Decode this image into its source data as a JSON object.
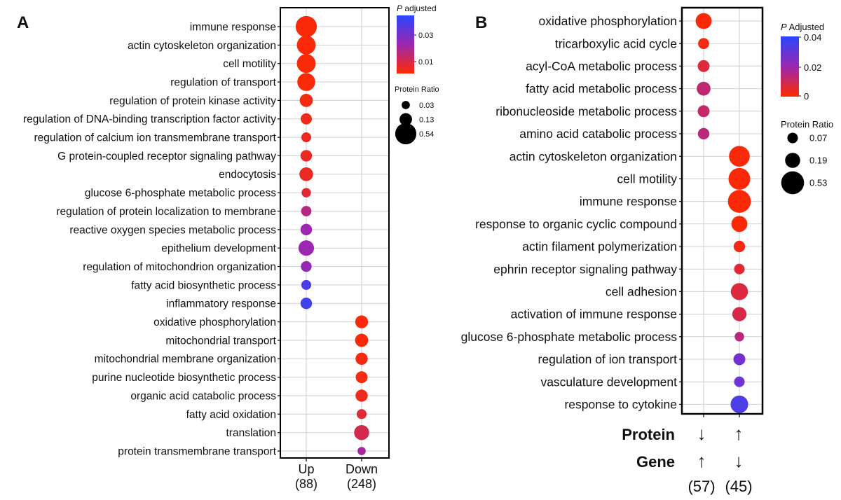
{
  "panels": [
    {
      "letter": "A"
    },
    {
      "letter": "B"
    }
  ],
  "legends": {
    "A": {
      "color_title_italic": "P",
      "color_title_rest": " adjusted",
      "color_ticks": [
        "0.03",
        "0.01"
      ],
      "size_title": "Protein Ratio",
      "size_labels": [
        "0.03",
        "0.13",
        "0.54"
      ],
      "size_values": [
        0.03,
        0.13,
        0.54
      ]
    },
    "B": {
      "color_title_italic": "P",
      "color_title_rest": " Adjusted",
      "color_ticks": [
        "0.04",
        "0.02",
        "0"
      ],
      "size_title": "Protein Ratio",
      "size_labels": [
        "0.07",
        "0.19",
        "0.53"
      ],
      "size_values": [
        0.07,
        0.19,
        0.53
      ]
    }
  },
  "colors": {
    "low_p": "#ff2a00",
    "mid_p": "#9c27b0",
    "high_p": "#2946ff",
    "grid": "#cfcfcf",
    "frame": "#000000",
    "text": "#111111"
  },
  "row_labels": {
    "Protein": "Protein",
    "Gene": "Gene"
  },
  "chart_data": [
    {
      "type": "scatter",
      "panel": "A",
      "x_categories": [
        "Up\n(88)",
        "Down\n(248)"
      ],
      "y_categories": [
        "immune response",
        "actin cytoskeleton organization",
        "cell motility",
        "regulation of transport",
        "regulation of protein kinase activity",
        "regulation of DNA-binding transcription factor activity",
        "regulation of calcium ion transmembrane transport",
        "G protein-coupled receptor signaling pathway",
        "endocytosis",
        "glucose 6-phosphate metabolic process",
        "regulation of protein localization to membrane",
        "reactive oxygen species metabolic process",
        "epithelium development",
        "regulation of mitochondrion organization",
        "fatty acid biosynthetic process",
        "inflammatory response",
        "oxidative phosphorylation",
        "mitochondrial transport",
        "mitochondrial membrane organization",
        "purine nucleotide biosynthetic process",
        "organic acid catabolic process",
        "fatty acid oxidation",
        "translation",
        "protein transmembrane transport"
      ],
      "color_range": [
        0.0,
        0.04
      ],
      "points": [
        {
          "x": 0,
          "y": 0,
          "ratio": 0.54,
          "p": 0.001
        },
        {
          "x": 0,
          "y": 1,
          "ratio": 0.4,
          "p": 0.001
        },
        {
          "x": 0,
          "y": 2,
          "ratio": 0.4,
          "p": 0.001
        },
        {
          "x": 0,
          "y": 3,
          "ratio": 0.35,
          "p": 0.001
        },
        {
          "x": 0,
          "y": 4,
          "ratio": 0.15,
          "p": 0.002
        },
        {
          "x": 0,
          "y": 5,
          "ratio": 0.09,
          "p": 0.003
        },
        {
          "x": 0,
          "y": 6,
          "ratio": 0.06,
          "p": 0.004
        },
        {
          "x": 0,
          "y": 7,
          "ratio": 0.1,
          "p": 0.004
        },
        {
          "x": 0,
          "y": 8,
          "ratio": 0.17,
          "p": 0.004
        },
        {
          "x": 0,
          "y": 9,
          "ratio": 0.05,
          "p": 0.006
        },
        {
          "x": 0,
          "y": 10,
          "ratio": 0.07,
          "p": 0.015
        },
        {
          "x": 0,
          "y": 11,
          "ratio": 0.1,
          "p": 0.02
        },
        {
          "x": 0,
          "y": 12,
          "ratio": 0.24,
          "p": 0.02
        },
        {
          "x": 0,
          "y": 13,
          "ratio": 0.08,
          "p": 0.021
        },
        {
          "x": 0,
          "y": 14,
          "ratio": 0.06,
          "p": 0.034
        },
        {
          "x": 0,
          "y": 15,
          "ratio": 0.1,
          "p": 0.036
        },
        {
          "x": 1,
          "y": 16,
          "ratio": 0.14,
          "p": 0.001
        },
        {
          "x": 1,
          "y": 17,
          "ratio": 0.15,
          "p": 0.001
        },
        {
          "x": 1,
          "y": 18,
          "ratio": 0.12,
          "p": 0.002
        },
        {
          "x": 1,
          "y": 19,
          "ratio": 0.11,
          "p": 0.002
        },
        {
          "x": 1,
          "y": 20,
          "ratio": 0.12,
          "p": 0.003
        },
        {
          "x": 1,
          "y": 21,
          "ratio": 0.06,
          "p": 0.006
        },
        {
          "x": 1,
          "y": 22,
          "ratio": 0.22,
          "p": 0.009
        },
        {
          "x": 1,
          "y": 23,
          "ratio": 0.03,
          "p": 0.018
        }
      ]
    },
    {
      "type": "scatter",
      "panel": "B",
      "x_categories": [
        "↓ ↑ (57)",
        "↑ ↓ (45)"
      ],
      "x_labels": {
        "protein": [
          "↓",
          "↑"
        ],
        "gene": [
          "↑",
          "↓"
        ],
        "counts": [
          "(57)",
          "(45)"
        ]
      },
      "y_categories": [
        "oxidative phosphorylation",
        "tricarboxylic acid cycle",
        "acyl-CoA metabolic process",
        "fatty acid metabolic process",
        "ribonucleoside metabolic process",
        "amino acid catabolic process",
        "actin cytoskeleton organization",
        "cell motility",
        "immune response",
        "response to organic cyclic compound",
        "actin filament polymerization",
        "ephrin receptor signaling pathway",
        "cell adhesion",
        "activation of immune response",
        "glucose 6-phosphate metabolic process",
        "regulation of ion transport",
        "vasculature development",
        "response to cytokine"
      ],
      "color_range": [
        0.0,
        0.04
      ],
      "points": [
        {
          "x": 0,
          "y": 0,
          "ratio": 0.22,
          "p": 0.001
        },
        {
          "x": 0,
          "y": 1,
          "ratio": 0.08,
          "p": 0.002
        },
        {
          "x": 0,
          "y": 2,
          "ratio": 0.1,
          "p": 0.007
        },
        {
          "x": 0,
          "y": 3,
          "ratio": 0.15,
          "p": 0.013
        },
        {
          "x": 0,
          "y": 4,
          "ratio": 0.1,
          "p": 0.012
        },
        {
          "x": 0,
          "y": 5,
          "ratio": 0.09,
          "p": 0.014
        },
        {
          "x": 1,
          "y": 6,
          "ratio": 0.42,
          "p": 0.001
        },
        {
          "x": 1,
          "y": 7,
          "ratio": 0.47,
          "p": 0.001
        },
        {
          "x": 1,
          "y": 8,
          "ratio": 0.53,
          "p": 0.001
        },
        {
          "x": 1,
          "y": 9,
          "ratio": 0.22,
          "p": 0.001
        },
        {
          "x": 1,
          "y": 10,
          "ratio": 0.09,
          "p": 0.002
        },
        {
          "x": 1,
          "y": 11,
          "ratio": 0.07,
          "p": 0.006
        },
        {
          "x": 1,
          "y": 12,
          "ratio": 0.26,
          "p": 0.007
        },
        {
          "x": 1,
          "y": 13,
          "ratio": 0.16,
          "p": 0.008
        },
        {
          "x": 1,
          "y": 14,
          "ratio": 0.05,
          "p": 0.014
        },
        {
          "x": 1,
          "y": 15,
          "ratio": 0.1,
          "p": 0.027
        },
        {
          "x": 1,
          "y": 16,
          "ratio": 0.07,
          "p": 0.028
        },
        {
          "x": 1,
          "y": 17,
          "ratio": 0.28,
          "p": 0.034
        }
      ]
    }
  ]
}
